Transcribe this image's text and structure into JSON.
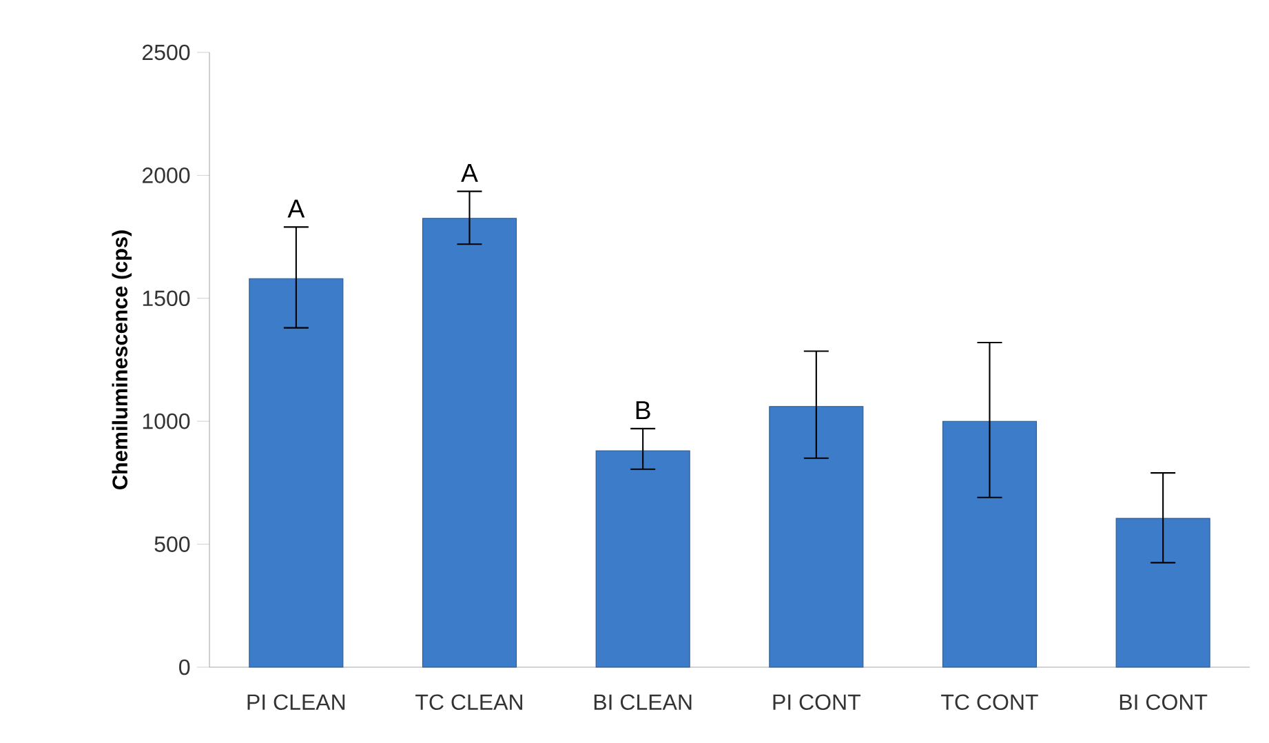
{
  "chart_data": {
    "type": "bar",
    "ylabel": "Chemiluminescence (cps)",
    "categories": [
      "PI CLEAN",
      "TC CLEAN",
      "BI CLEAN",
      "PI CONT",
      "TC CONT",
      "BI CONT"
    ],
    "values": [
      1580,
      1825,
      880,
      1060,
      1000,
      605
    ],
    "errors": [
      [
        1380,
        1790
      ],
      [
        1720,
        1935
      ],
      [
        805,
        970
      ],
      [
        850,
        1285
      ],
      [
        690,
        1320
      ],
      [
        425,
        790
      ]
    ],
    "color": "#3d7cc9",
    "ylim": [
      0,
      2500
    ],
    "yticks": [
      0,
      500,
      1000,
      1500,
      2000,
      2500
    ],
    "grid": false,
    "annotations": [
      {
        "text": "A",
        "x": "PI CLEAN",
        "y": 1790
      },
      {
        "text": "A",
        "x": "TC CLEAN",
        "y": 1935
      },
      {
        "text": "B",
        "x": "BI CLEAN",
        "y": 970
      }
    ]
  }
}
